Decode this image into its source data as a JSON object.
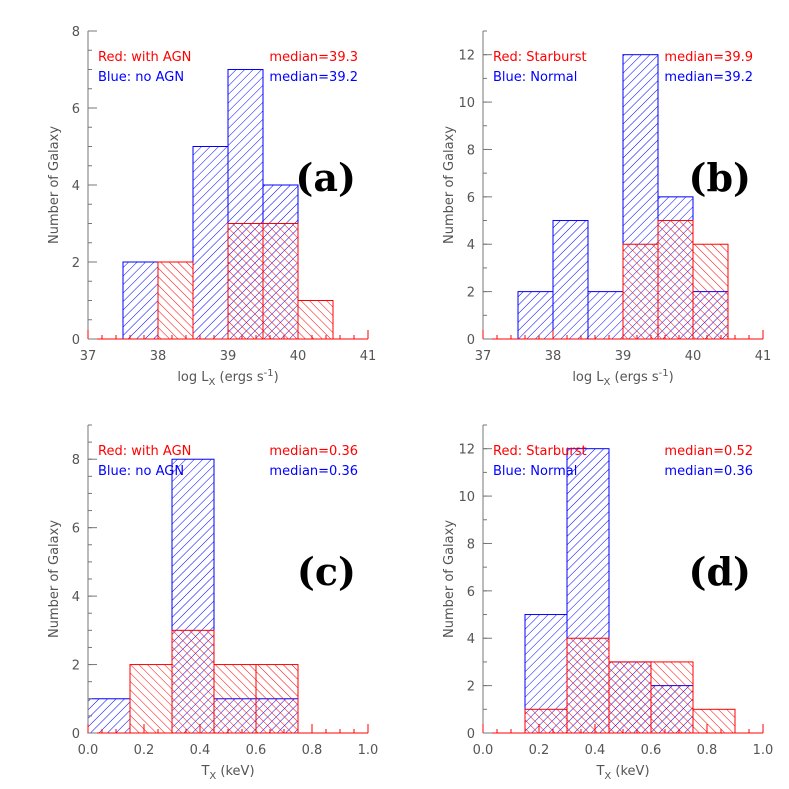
{
  "colors": {
    "red": "#ff0000",
    "blue": "#0000ff",
    "axis": "#777777",
    "text": "#555555"
  },
  "chart_data": [
    {
      "type": "bar",
      "panel_label": "(a)",
      "xlabel": "log L",
      "xlabel_sub": "X",
      "xlabel_units": " (ergs s",
      "xlabel_sup": "-1",
      "xlabel_tail": ")",
      "ylabel": "Number of Galaxy",
      "xlim": [
        37,
        41
      ],
      "ylim": [
        0,
        8
      ],
      "xticks": [
        37,
        38,
        39,
        40,
        41
      ],
      "xtick_labels": [
        "37",
        "38",
        "39",
        "40",
        "41"
      ],
      "yticks": [
        0,
        2,
        4,
        6,
        8
      ],
      "ytick_labels": [
        "0",
        "2",
        "4",
        "6",
        "8"
      ],
      "xminor": 0.2,
      "yminor": 0.5,
      "legend": {
        "red_label": "Red: with AGN",
        "red_median": "median=39.3",
        "blue_label": "Blue: no AGN",
        "blue_median": "median=39.2"
      },
      "series": [
        {
          "name": "with AGN",
          "color": "red",
          "hatch": "red",
          "bins": [
            [
              38.0,
              38.5,
              2
            ],
            [
              39.0,
              39.5,
              3
            ],
            [
              39.5,
              40.0,
              3
            ],
            [
              40.0,
              40.5,
              1
            ]
          ]
        },
        {
          "name": "no AGN",
          "color": "blue",
          "hatch": "blue",
          "bins": [
            [
              37.5,
              38.0,
              2
            ],
            [
              38.5,
              39.0,
              5
            ],
            [
              39.0,
              39.5,
              7
            ],
            [
              39.5,
              40.0,
              4
            ]
          ]
        }
      ]
    },
    {
      "type": "bar",
      "panel_label": "(b)",
      "xlabel": "log L",
      "xlabel_sub": "X",
      "xlabel_units": " (ergs s",
      "xlabel_sup": "-1",
      "xlabel_tail": ")",
      "ylabel": "Number of Galaxy",
      "xlim": [
        37,
        41
      ],
      "ylim": [
        0,
        13
      ],
      "xticks": [
        37,
        38,
        39,
        40,
        41
      ],
      "xtick_labels": [
        "37",
        "38",
        "39",
        "40",
        "41"
      ],
      "yticks": [
        0,
        2,
        4,
        6,
        8,
        10,
        12
      ],
      "ytick_labels": [
        "0",
        "2",
        "4",
        "6",
        "8",
        "10",
        "12"
      ],
      "xminor": 0.2,
      "yminor": 1,
      "legend": {
        "red_label": "Red: Starburst",
        "red_median": "median=39.9",
        "blue_label": "Blue: Normal",
        "blue_median": "median=39.2"
      },
      "series": [
        {
          "name": "Starburst",
          "color": "red",
          "hatch": "red",
          "bins": [
            [
              39.0,
              39.5,
              4
            ],
            [
              39.5,
              40.0,
              5
            ],
            [
              40.0,
              40.5,
              4
            ]
          ]
        },
        {
          "name": "Normal",
          "color": "blue",
          "hatch": "blue",
          "bins": [
            [
              37.5,
              38.0,
              2
            ],
            [
              38.0,
              38.5,
              5
            ],
            [
              38.5,
              39.0,
              2
            ],
            [
              39.0,
              39.5,
              12
            ],
            [
              39.5,
              40.0,
              6
            ],
            [
              40.0,
              40.5,
              2
            ]
          ]
        }
      ]
    },
    {
      "type": "bar",
      "panel_label": "(c)",
      "xlabel": "T",
      "xlabel_sub": "X",
      "xlabel_units": " (keV)",
      "xlabel_sup": "",
      "xlabel_tail": "",
      "ylabel": "Number of Galaxy",
      "xlim": [
        0.0,
        1.0
      ],
      "ylim": [
        0,
        9
      ],
      "xticks": [
        0.0,
        0.2,
        0.4,
        0.6,
        0.8,
        1.0
      ],
      "xtick_labels": [
        "0.0",
        "0.2",
        "0.4",
        "0.6",
        "0.8",
        "1.0"
      ],
      "yticks": [
        0,
        2,
        4,
        6,
        8
      ],
      "ytick_labels": [
        "0",
        "2",
        "4",
        "6",
        "8"
      ],
      "xminor": 0.05,
      "yminor": 0.5,
      "legend": {
        "red_label": "Red: with AGN",
        "red_median": "median=0.36",
        "blue_label": "Blue: no AGN",
        "blue_median": "median=0.36"
      },
      "series": [
        {
          "name": "with AGN",
          "color": "red",
          "hatch": "red",
          "bins": [
            [
              0.15,
              0.3,
              2
            ],
            [
              0.3,
              0.45,
              3
            ],
            [
              0.45,
              0.6,
              2
            ],
            [
              0.6,
              0.75,
              2
            ]
          ]
        },
        {
          "name": "no AGN",
          "color": "blue",
          "hatch": "blue",
          "bins": [
            [
              0.0,
              0.15,
              1
            ],
            [
              0.3,
              0.45,
              8
            ],
            [
              0.45,
              0.6,
              1
            ],
            [
              0.6,
              0.75,
              1
            ]
          ]
        }
      ]
    },
    {
      "type": "bar",
      "panel_label": "(d)",
      "xlabel": "T",
      "xlabel_sub": "X",
      "xlabel_units": " (keV)",
      "xlabel_sup": "",
      "xlabel_tail": "",
      "ylabel": "Number of Galaxy",
      "xlim": [
        0.0,
        1.0
      ],
      "ylim": [
        0,
        13
      ],
      "xticks": [
        0.0,
        0.2,
        0.4,
        0.6,
        0.8,
        1.0
      ],
      "xtick_labels": [
        "0.0",
        "0.2",
        "0.4",
        "0.6",
        "0.8",
        "1.0"
      ],
      "yticks": [
        0,
        2,
        4,
        6,
        8,
        10,
        12
      ],
      "ytick_labels": [
        "0",
        "2",
        "4",
        "6",
        "8",
        "10",
        "12"
      ],
      "xminor": 0.05,
      "yminor": 1,
      "legend": {
        "red_label": "Red: Starburst",
        "red_median": "median=0.52",
        "blue_label": "Blue: Normal",
        "blue_median": "median=0.36"
      },
      "series": [
        {
          "name": "Starburst",
          "color": "red",
          "hatch": "red",
          "bins": [
            [
              0.15,
              0.3,
              1
            ],
            [
              0.3,
              0.45,
              4
            ],
            [
              0.45,
              0.6,
              3
            ],
            [
              0.6,
              0.75,
              3
            ],
            [
              0.75,
              0.9,
              1
            ]
          ]
        },
        {
          "name": "Normal",
          "color": "blue",
          "hatch": "blue",
          "bins": [
            [
              0.15,
              0.3,
              5
            ],
            [
              0.3,
              0.45,
              12
            ],
            [
              0.45,
              0.6,
              3
            ],
            [
              0.6,
              0.75,
              2
            ]
          ]
        }
      ]
    }
  ]
}
